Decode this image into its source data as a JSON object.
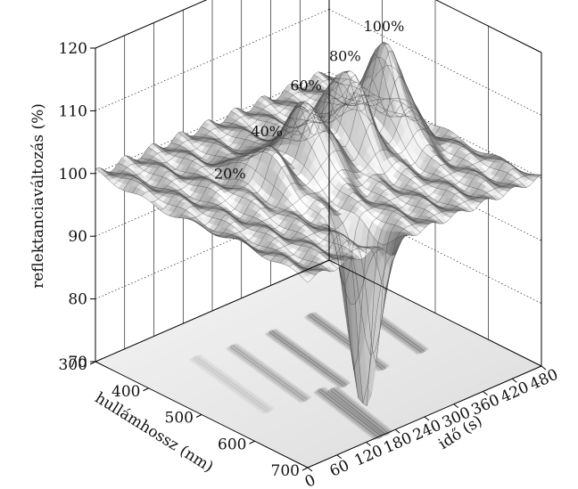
{
  "chart_data": {
    "type": "surface3d",
    "title": "",
    "xlabel": "hullámhossz (nm)",
    "ylabel": "idő (s)",
    "zlabel": "reflektanciaváltozás (%)",
    "x_ticks": [
      "300",
      "400",
      "500",
      "600",
      "700"
    ],
    "y_ticks": [
      "0",
      "60",
      "120",
      "180",
      "240",
      "300",
      "360",
      "420",
      "480"
    ],
    "z_ticks": [
      "70",
      "80",
      "90",
      "100",
      "110",
      "120"
    ],
    "xlim": [
      300,
      700
    ],
    "ylim": [
      0,
      480
    ],
    "zlim": [
      70,
      120
    ],
    "baseline": 100,
    "projection_contour": true,
    "peaks": [
      {
        "label": "20%",
        "time": 100,
        "wavelength": 465,
        "value": 101
      },
      {
        "label": "40%",
        "time": 165,
        "wavelength": 475,
        "value": 106
      },
      {
        "label": "60%",
        "time": 240,
        "wavelength": 480,
        "value": 111
      },
      {
        "label": "80%",
        "time": 320,
        "wavelength": 480,
        "value": 113
      },
      {
        "label": "100%",
        "time": 400,
        "wavelength": 480,
        "value": 115
      }
    ],
    "dips": [
      {
        "time": 165,
        "wavelength": 640,
        "value": 83
      },
      {
        "time": 180,
        "wavelength": 650,
        "value": 77
      }
    ]
  }
}
